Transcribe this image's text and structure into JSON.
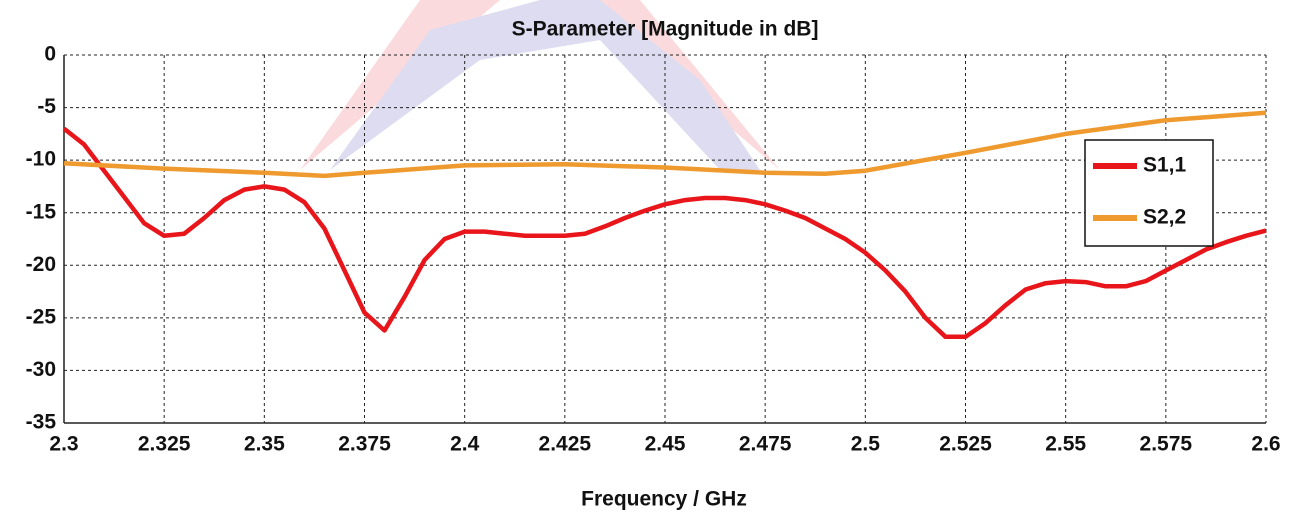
{
  "chart_data": {
    "type": "line",
    "title": "S-Parameter [Magnitude in dB]",
    "x_label": "Frequency / GHz",
    "xlim": [
      2.3,
      2.6
    ],
    "xticks": [
      2.3,
      2.325,
      2.35,
      2.375,
      2.4,
      2.425,
      2.45,
      2.475,
      2.5,
      2.525,
      2.55,
      2.575,
      2.6
    ],
    "ylim": [
      -35,
      0
    ],
    "yticks": [
      0,
      -5,
      -10,
      -15,
      -20,
      -25,
      -30,
      -35
    ],
    "grid": true,
    "legend": "right",
    "series": [
      {
        "name": "S1,1",
        "color": "#e8161b",
        "x": [
          2.3,
          2.305,
          2.31,
          2.315,
          2.32,
          2.325,
          2.33,
          2.335,
          2.34,
          2.345,
          2.35,
          2.355,
          2.36,
          2.365,
          2.37,
          2.375,
          2.38,
          2.385,
          2.39,
          2.395,
          2.4,
          2.405,
          2.41,
          2.415,
          2.42,
          2.425,
          2.43,
          2.435,
          2.44,
          2.445,
          2.45,
          2.455,
          2.46,
          2.465,
          2.47,
          2.475,
          2.48,
          2.485,
          2.49,
          2.495,
          2.5,
          2.505,
          2.51,
          2.515,
          2.52,
          2.525,
          2.53,
          2.535,
          2.54,
          2.545,
          2.55,
          2.555,
          2.56,
          2.565,
          2.57,
          2.575,
          2.58,
          2.585,
          2.59,
          2.595,
          2.6
        ],
        "values": [
          -7,
          -8.5,
          -11,
          -13.5,
          -16,
          -17.2,
          -17,
          -15.5,
          -13.8,
          -12.8,
          -12.5,
          -12.8,
          -14,
          -16.5,
          -20.5,
          -24.5,
          -26.2,
          -23,
          -19.5,
          -17.5,
          -16.8,
          -16.8,
          -17,
          -17.2,
          -17.2,
          -17.2,
          -17,
          -16.3,
          -15.5,
          -14.8,
          -14.2,
          -13.8,
          -13.6,
          -13.6,
          -13.8,
          -14.2,
          -14.8,
          -15.5,
          -16.5,
          -17.5,
          -18.8,
          -20.5,
          -22.5,
          -25,
          -26.8,
          -26.8,
          -25.5,
          -23.8,
          -22.3,
          -21.7,
          -21.5,
          -21.6,
          -22,
          -22,
          -21.5,
          -20.5,
          -19.5,
          -18.5,
          -17.8,
          -17.2,
          -16.7
        ]
      },
      {
        "name": "S2,2",
        "color": "#ee9a2e",
        "x": [
          2.3,
          2.325,
          2.35,
          2.365,
          2.375,
          2.4,
          2.425,
          2.45,
          2.475,
          2.49,
          2.5,
          2.525,
          2.55,
          2.575,
          2.6
        ],
        "values": [
          -10.3,
          -10.8,
          -11.2,
          -11.5,
          -11.2,
          -10.5,
          -10.4,
          -10.7,
          -11.2,
          -11.3,
          -11,
          -9.3,
          -7.5,
          -6.2,
          -5.5
        ]
      }
    ]
  }
}
